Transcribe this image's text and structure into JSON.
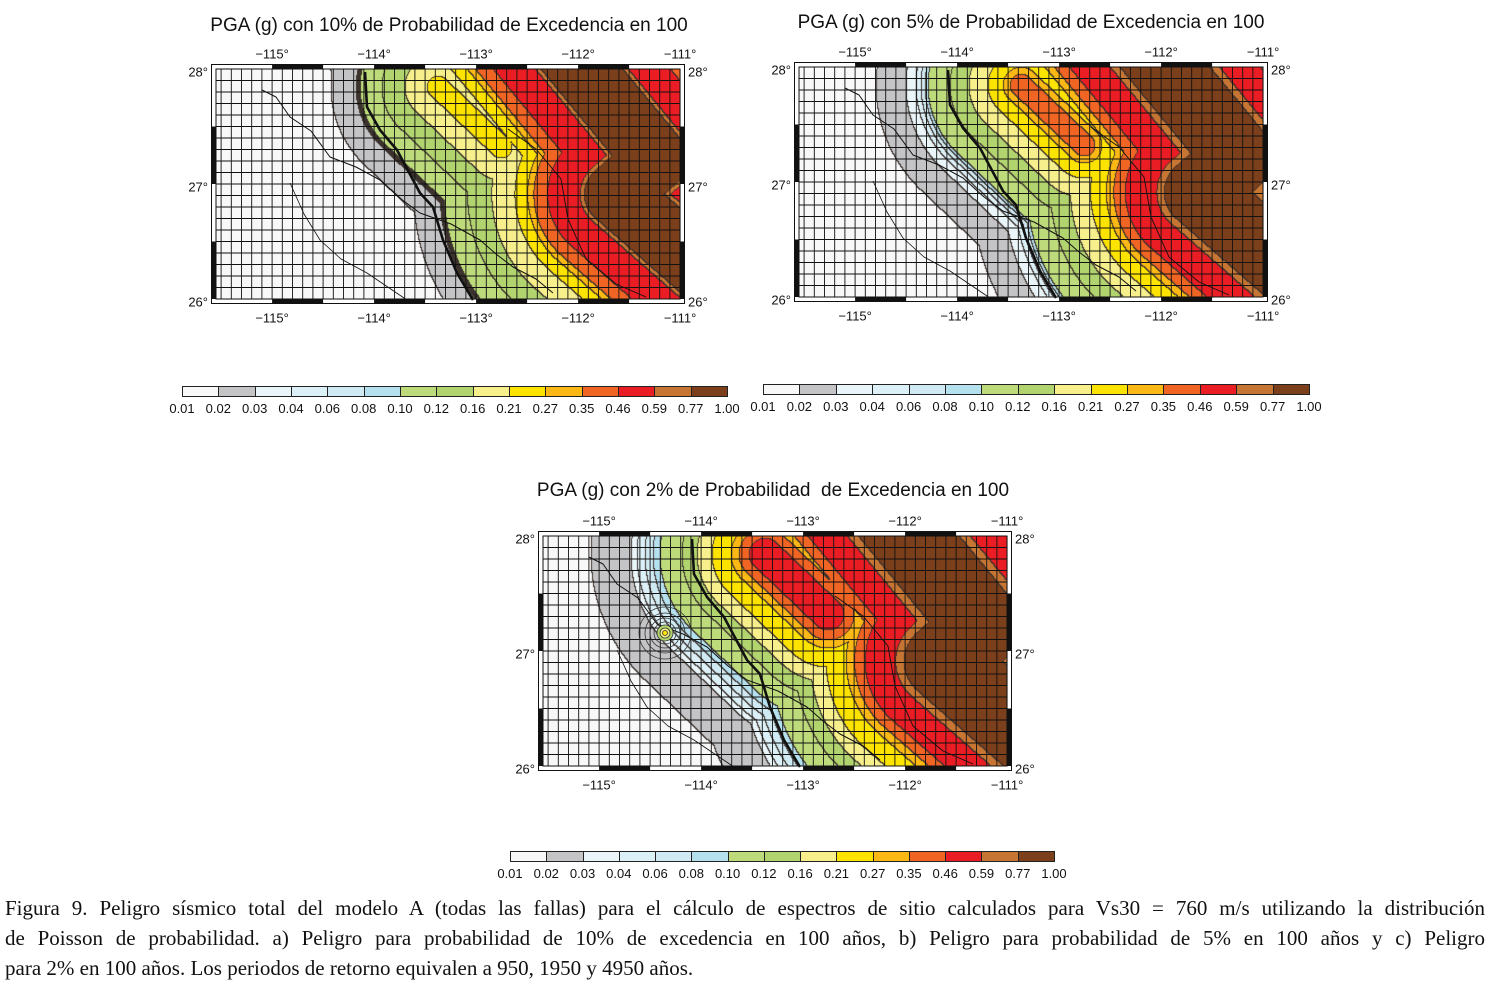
{
  "maps": [
    {
      "title": "PGA (g) con 10% de Probabilidad de Excedencia en 100",
      "lon_labels": [
        "−115°",
        "−114°",
        "−113°",
        "−112°",
        "−111°"
      ],
      "lat_labels": [
        "28°",
        "27°",
        "26°"
      ]
    },
    {
      "title": "PGA (g) con 5% de Probabilidad de Excedencia en 100",
      "lon_labels": [
        "−115°",
        "−114°",
        "−113°",
        "−112°",
        "−111°"
      ],
      "lat_labels": [
        "28°",
        "27°",
        "26°"
      ]
    },
    {
      "title": "PGA (g) con 2% de Probabilidad  de Excedencia en 100",
      "lon_labels": [
        "−115°",
        "−114°",
        "−113°",
        "−112°",
        "−111°"
      ],
      "lat_labels": [
        "28°",
        "27°",
        "26°"
      ]
    }
  ],
  "colorbar": {
    "labels": [
      "0.01",
      "0.02",
      "0.03",
      "0.04",
      "0.06",
      "0.08",
      "0.10",
      "0.12",
      "0.16",
      "0.21",
      "0.27",
      "0.35",
      "0.46",
      "0.59",
      "0.77",
      "1.00"
    ],
    "colors": [
      "#f8f8f8",
      "#c4c4c6",
      "#eaf5fa",
      "#dcf0f7",
      "#d0eaf3",
      "#b5e0ee",
      "#bddb7b",
      "#b2d46e",
      "#f6ef8c",
      "#fde300",
      "#fcb814",
      "#f06424",
      "#ea1c24",
      "#c77532",
      "#7c3f1c"
    ]
  },
  "caption_lines": [
    "Figura 9. Peligro sísmico total del modelo A (todas las fallas) para el cálculo de espectros de sitio calculados para Vs30 = 760  m/s utilizando la distribución",
    "de Poisson de probabilidad. a) Peligro para probabilidad de 10% de excedencia en 100 años, b) Peligro para probabilidad de 5% en 100 años y c) Peligro",
    "para 2% en 100 años. Los periodos de retorno equivalen a 950, 1950 y 4950 años."
  ]
}
